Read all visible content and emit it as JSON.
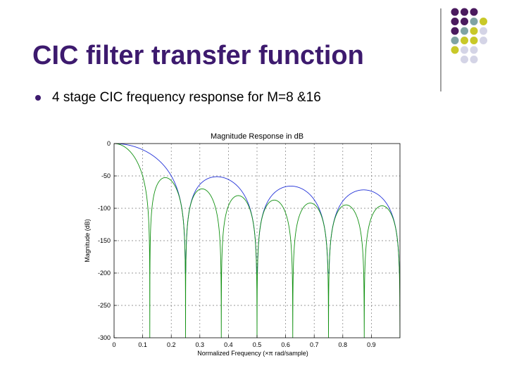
{
  "slide": {
    "title": "CIC filter transfer function",
    "bullet": "4 stage CIC frequency response for M=8 &16"
  },
  "decor": {
    "dot_grid": [
      [
        "purple",
        "purple",
        "purple",
        "none"
      ],
      [
        "purple",
        "purple",
        "teal",
        "yellow"
      ],
      [
        "purple",
        "teal",
        "yellow",
        "lavender"
      ],
      [
        "teal",
        "yellow",
        "yellow",
        "lavender"
      ],
      [
        "yellow",
        "lavender",
        "lavender",
        "none"
      ],
      [
        "none",
        "lavender",
        "lavender",
        "none"
      ]
    ],
    "colors": {
      "purple": "#4a1a5e",
      "teal": "#7fa3a3",
      "yellow": "#c8c828",
      "lavender": "#d4d4e6",
      "title": "#3d1a6e"
    }
  },
  "chart_data": {
    "type": "line",
    "title": "Magnitude Response in dB",
    "xlabel": "Normalized Frequency  (×π rad/sample)",
    "ylabel": "Magnitude (dB)",
    "xlim": [
      0,
      1
    ],
    "ylim": [
      -300,
      0
    ],
    "xticks": [
      0,
      0.1,
      0.2,
      0.3,
      0.4,
      0.5,
      0.6,
      0.7,
      0.8,
      0.9
    ],
    "yticks": [
      0,
      -50,
      -100,
      -150,
      -200,
      -250,
      -300
    ],
    "grid": "dashed",
    "series": [
      {
        "color": "#2030d8",
        "stages": 4,
        "M": 8,
        "floor_db": -200
      },
      {
        "color": "#109010",
        "stages": 4,
        "M": 16,
        "floor_db": -300
      }
    ]
  }
}
